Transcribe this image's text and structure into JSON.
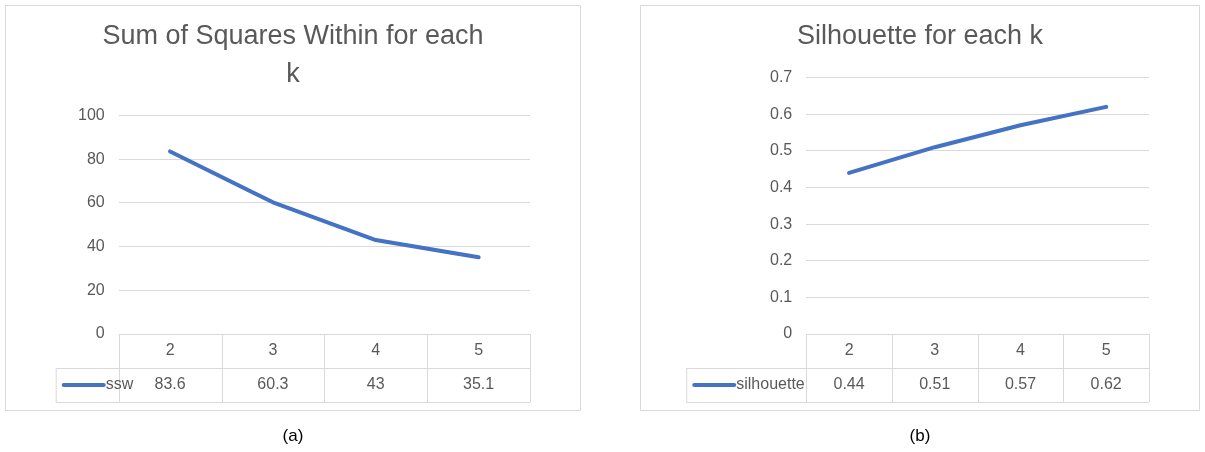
{
  "chart_data": [
    {
      "type": "line",
      "title": "Sum of Squares Within for each k",
      "categories": [
        "2",
        "3",
        "4",
        "5"
      ],
      "series": [
        {
          "name": "ssw",
          "color": "#4472c4",
          "values": [
            83.6,
            60.3,
            43,
            35.1
          ]
        }
      ],
      "ylim": [
        0,
        100
      ],
      "yticks": [
        0,
        20,
        40,
        60,
        80,
        100
      ],
      "grid": "y",
      "legend": "bottom",
      "data_labels": true,
      "marker": "none",
      "annotations": [
        "(a)"
      ]
    },
    {
      "type": "line",
      "title": "Silhouette for each k",
      "categories": [
        "2",
        "3",
        "4",
        "5"
      ],
      "series": [
        {
          "name": "silhouette",
          "color": "#4472c4",
          "values": [
            0.44,
            0.51,
            0.57,
            0.62
          ]
        }
      ],
      "ylim": [
        0,
        0.7
      ],
      "yticks": [
        0,
        0.1,
        0.2,
        0.3,
        0.4,
        0.5,
        0.6,
        0.7
      ],
      "grid": "y",
      "legend": "bottom",
      "data_labels": true,
      "marker": "none",
      "annotations": [
        "(b)"
      ]
    }
  ]
}
